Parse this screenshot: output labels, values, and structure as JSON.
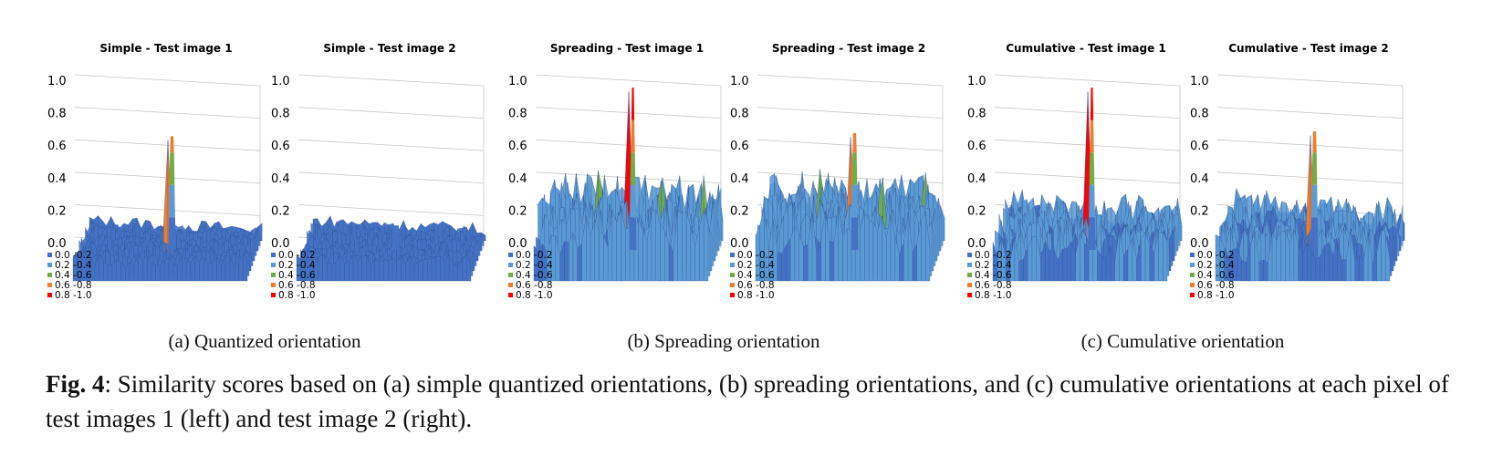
{
  "figure": {
    "panels": [
      {
        "title": "Simple - Test image 1",
        "peak": 0.7,
        "noise": 0.08,
        "base": 0.03,
        "side_peaks": []
      },
      {
        "title": "Simple - Test image 2",
        "peak": 0.15,
        "noise": 0.08,
        "base": 0.03,
        "side_peaks": []
      },
      {
        "title": "Spreading - Test image 1",
        "peak": 1.0,
        "noise": 0.3,
        "base": 0.1,
        "side_peaks": [
          0.45,
          0.43,
          0.42
        ]
      },
      {
        "title": "Spreading - Test image 2",
        "peak": 0.72,
        "noise": 0.3,
        "base": 0.1,
        "side_peaks": [
          0.46,
          0.45,
          0.44
        ]
      },
      {
        "title": "Cumulative - Test image 1",
        "peak": 1.0,
        "noise": 0.22,
        "base": 0.05,
        "side_peaks": []
      },
      {
        "title": "Cumulative - Test image 2",
        "peak": 0.73,
        "noise": 0.22,
        "base": 0.05,
        "side_peaks": []
      }
    ],
    "z_ticks": [
      "1.0",
      "0.8",
      "0.6",
      "0.4",
      "0.2",
      "0.0"
    ],
    "legend": [
      {
        "label": "0.0 -0.2",
        "color": "#4472c4"
      },
      {
        "label": "0.2 -0.4",
        "color": "#5b9bd5"
      },
      {
        "label": "0.4 -0.6",
        "color": "#70ad47"
      },
      {
        "label": "0.6 -0.8",
        "color": "#ed7d31"
      },
      {
        "label": "0.8 -1.0",
        "color": "#ff0000"
      }
    ],
    "subcaptions": [
      "(a) Quantized orientation",
      "(b) Spreading orientation",
      "(c) Cumulative orientation"
    ],
    "caption_label": "Fig. 4",
    "caption_text": ": Similarity scores based on (a) simple quantized orientations, (b) spreading orientations, and (c) cumulative orientations at each pixel of test images 1 (left) and test image 2 (right)."
  },
  "chart_data": [
    {
      "type": "surface",
      "title": "Simple - Test image 1",
      "zlim": [
        0,
        1.0
      ],
      "peak_value": 0.7
    },
    {
      "type": "surface",
      "title": "Simple - Test image 2",
      "zlim": [
        0,
        1.0
      ],
      "peak_value": 0.15
    },
    {
      "type": "surface",
      "title": "Spreading - Test image 1",
      "zlim": [
        0,
        1.0
      ],
      "peak_value": 1.0
    },
    {
      "type": "surface",
      "title": "Spreading - Test image 2",
      "zlim": [
        0,
        1.0
      ],
      "peak_value": 0.72
    },
    {
      "type": "surface",
      "title": "Cumulative - Test image 1",
      "zlim": [
        0,
        1.0
      ],
      "peak_value": 1.0
    },
    {
      "type": "surface",
      "title": "Cumulative - Test image 2",
      "zlim": [
        0,
        1.0
      ],
      "peak_value": 0.73
    }
  ]
}
